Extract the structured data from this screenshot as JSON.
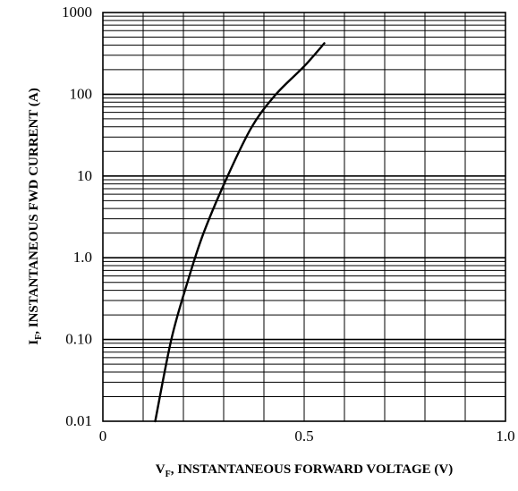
{
  "chart_data": {
    "type": "line",
    "title": "",
    "xlabel": {
      "symbol": "V",
      "subscript": "F",
      "text": ", INSTANTANEOUS FORWARD VOLTAGE (V)"
    },
    "ylabel": {
      "symbol": "I",
      "subscript": "F",
      "text": ", INSTANTANEOUS FWD CURRENT (A)"
    },
    "xlim": [
      0,
      1.0
    ],
    "ylim": [
      0.01,
      1000
    ],
    "yscale": "log",
    "grid": true,
    "x_tick_labels": [
      {
        "value": 0,
        "label": "0"
      },
      {
        "value": 0.5,
        "label": "0.5"
      },
      {
        "value": 1.0,
        "label": "1.0"
      }
    ],
    "y_tick_labels": [
      {
        "value": 0.01,
        "label": "0.01"
      },
      {
        "value": 0.1,
        "label": "0.10"
      },
      {
        "value": 1,
        "label": "1.0"
      },
      {
        "value": 10,
        "label": "10"
      },
      {
        "value": 100,
        "label": "100"
      },
      {
        "value": 1000,
        "label": "1000"
      }
    ],
    "series": [
      {
        "points": [
          {
            "x": 0.13,
            "y": 0.01
          },
          {
            "x": 0.17,
            "y": 0.1
          },
          {
            "x": 0.21,
            "y": 0.5
          },
          {
            "x": 0.25,
            "y": 2
          },
          {
            "x": 0.31,
            "y": 10
          },
          {
            "x": 0.37,
            "y": 40
          },
          {
            "x": 0.43,
            "y": 100
          },
          {
            "x": 0.5,
            "y": 220
          },
          {
            "x": 0.55,
            "y": 420
          }
        ]
      }
    ]
  }
}
